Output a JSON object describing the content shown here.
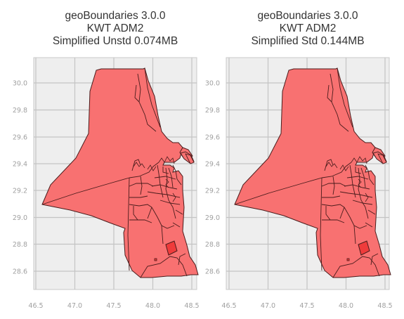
{
  "panels": [
    {
      "title_lines": [
        "geoBoundaries 3.0.0",
        "KWT ADM2",
        "Simplified Unstd 0.074MB"
      ],
      "x_ticks": [
        "46.5",
        "47.0",
        "47.5",
        "48.0",
        "48.5"
      ],
      "y_ticks": [
        "30.0",
        "29.8",
        "29.6",
        "29.4",
        "29.2",
        "29.0",
        "28.8",
        "28.6"
      ]
    },
    {
      "title_lines": [
        "geoBoundaries 3.0.0",
        "KWT ADM2",
        "Simplified Std 0.144MB"
      ],
      "x_ticks": [
        "46.5",
        "47.0",
        "47.5",
        "48.0",
        "48.5"
      ],
      "y_ticks": [
        "30.0",
        "29.8",
        "29.6",
        "29.4",
        "29.2",
        "29.0",
        "28.8",
        "28.6"
      ]
    }
  ],
  "colors": {
    "fill": "#f87171",
    "edge": "#4a1c1c",
    "plot_bg": "#eeeeee",
    "grid": "#c4c4c4"
  }
}
